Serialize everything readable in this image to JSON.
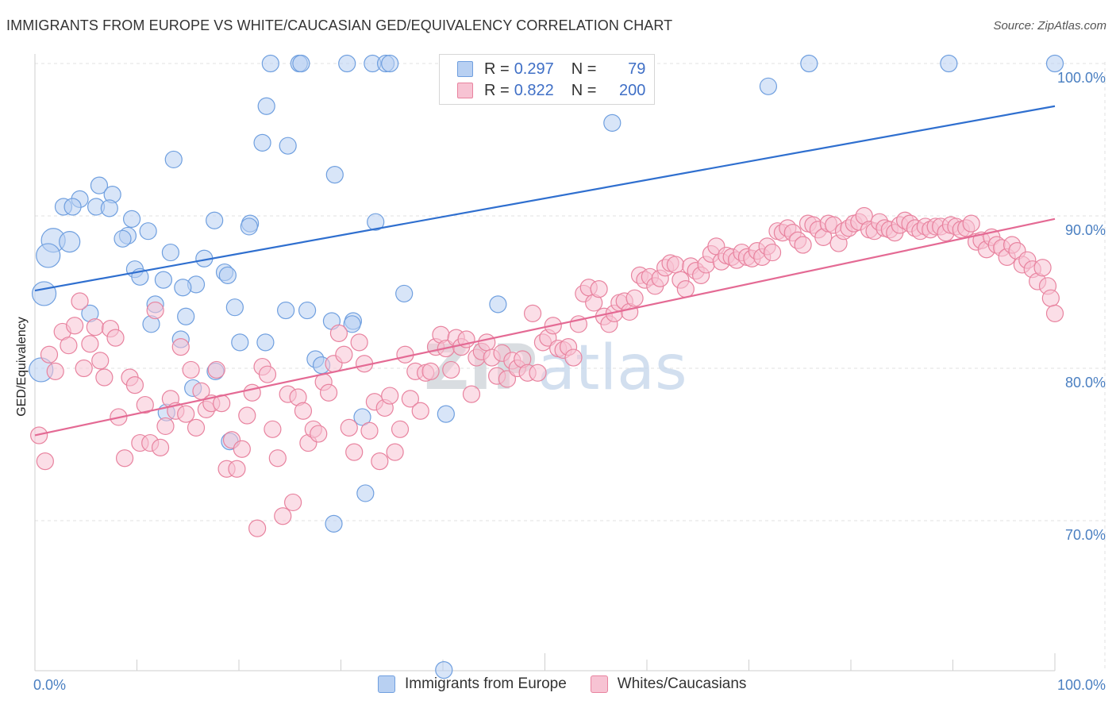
{
  "title": "IMMIGRANTS FROM EUROPE VS WHITE/CAUCASIAN GED/EQUIVALENCY CORRELATION CHART",
  "source": "Source: ZipAtlas.com",
  "legend": {
    "r_label": "R =",
    "n_label": "N =",
    "series1": {
      "r": "0.297",
      "n": "79"
    },
    "series2": {
      "r": "0.822",
      "n": "200"
    }
  },
  "chart_data": {
    "type": "scatter",
    "ylabel": "GED/Equivalency",
    "xlim": [
      0,
      100
    ],
    "ylim": [
      60,
      100
    ],
    "xticks": [
      "0.0%",
      "100.0%"
    ],
    "yticks": [
      {
        "value": 100,
        "label": "100.0%"
      },
      {
        "value": 90,
        "label": "90.0%"
      },
      {
        "value": 80,
        "label": "80.0%"
      },
      {
        "value": 70,
        "label": "70.0%"
      }
    ],
    "watermark": "ZIPatlas",
    "series": [
      {
        "name": "Immigrants from Europe",
        "color": "#6f9fdf",
        "fill": "#b8d0f2",
        "trend": [
          [
            0,
            85.1
          ],
          [
            100,
            97.2
          ]
        ],
        "points": [
          [
            23.1,
            100
          ],
          [
            25.9,
            100
          ],
          [
            26.1,
            100
          ],
          [
            30.6,
            100
          ],
          [
            33.1,
            100
          ],
          [
            34.4,
            100
          ],
          [
            34.8,
            100
          ],
          [
            75.9,
            100
          ],
          [
            89.6,
            100
          ],
          [
            100,
            100
          ],
          [
            71.9,
            98.5
          ],
          [
            56.6,
            96.1
          ],
          [
            22.7,
            97.2
          ],
          [
            22.3,
            94.8
          ],
          [
            24.8,
            94.6
          ],
          [
            13.6,
            93.7
          ],
          [
            29.4,
            92.7
          ],
          [
            6.3,
            92.0
          ],
          [
            7.6,
            91.4
          ],
          [
            4.4,
            91.1
          ],
          [
            2.8,
            90.6
          ],
          [
            3.7,
            90.6
          ],
          [
            6.0,
            90.6
          ],
          [
            7.3,
            90.5
          ],
          [
            9.5,
            89.8
          ],
          [
            17.6,
            89.7
          ],
          [
            21.1,
            89.5
          ],
          [
            21.0,
            89.3
          ],
          [
            33.4,
            89.6
          ],
          [
            11.1,
            89.0
          ],
          [
            9.1,
            88.7
          ],
          [
            8.6,
            88.5
          ],
          [
            1.8,
            88.4
          ],
          [
            3.4,
            88.3
          ],
          [
            13.3,
            87.6
          ],
          [
            16.6,
            87.2
          ],
          [
            1.3,
            87.4
          ],
          [
            9.8,
            86.5
          ],
          [
            18.6,
            86.3
          ],
          [
            18.9,
            86.1
          ],
          [
            10.3,
            86.0
          ],
          [
            12.6,
            85.8
          ],
          [
            15.8,
            85.5
          ],
          [
            14.5,
            85.3
          ],
          [
            0.9,
            84.9
          ],
          [
            36.2,
            84.9
          ],
          [
            45.4,
            84.2
          ],
          [
            11.8,
            84.2
          ],
          [
            19.6,
            84.0
          ],
          [
            24.6,
            83.8
          ],
          [
            26.7,
            83.8
          ],
          [
            5.4,
            83.6
          ],
          [
            14.8,
            83.4
          ],
          [
            29.1,
            83.1
          ],
          [
            31.2,
            83.1
          ],
          [
            31.1,
            82.9
          ],
          [
            11.4,
            82.9
          ],
          [
            14.3,
            81.9
          ],
          [
            20.1,
            81.7
          ],
          [
            22.6,
            81.7
          ],
          [
            27.5,
            80.6
          ],
          [
            28.1,
            80.2
          ],
          [
            0.6,
            79.9
          ],
          [
            17.7,
            79.8
          ],
          [
            15.5,
            78.7
          ],
          [
            12.9,
            77.1
          ],
          [
            32.1,
            76.8
          ],
          [
            40.3,
            77.0
          ],
          [
            19.1,
            75.2
          ],
          [
            32.4,
            71.8
          ],
          [
            29.3,
            69.8
          ],
          [
            40.1,
            60.2
          ]
        ]
      },
      {
        "name": "Whites/Caucasians",
        "color": "#e8839f",
        "fill": "#f7c3d3",
        "trend": [
          [
            0,
            75.6
          ],
          [
            100,
            89.8
          ]
        ],
        "points": [
          [
            0.4,
            75.6
          ],
          [
            1.0,
            73.9
          ],
          [
            1.4,
            80.9
          ],
          [
            2.0,
            79.8
          ],
          [
            2.7,
            82.4
          ],
          [
            3.3,
            81.5
          ],
          [
            3.9,
            82.8
          ],
          [
            4.4,
            84.4
          ],
          [
            4.8,
            80.0
          ],
          [
            5.4,
            81.6
          ],
          [
            5.9,
            82.7
          ],
          [
            6.4,
            80.5
          ],
          [
            6.8,
            79.4
          ],
          [
            7.4,
            82.6
          ],
          [
            7.9,
            82.0
          ],
          [
            8.2,
            76.8
          ],
          [
            8.8,
            74.1
          ],
          [
            9.3,
            79.4
          ],
          [
            9.8,
            78.9
          ],
          [
            10.3,
            75.1
          ],
          [
            10.8,
            77.6
          ],
          [
            11.3,
            75.1
          ],
          [
            11.8,
            83.8
          ],
          [
            12.3,
            74.8
          ],
          [
            12.8,
            76.2
          ],
          [
            13.3,
            78.0
          ],
          [
            13.8,
            77.2
          ],
          [
            14.3,
            81.4
          ],
          [
            14.8,
            77.0
          ],
          [
            15.3,
            79.9
          ],
          [
            15.8,
            76.1
          ],
          [
            16.3,
            78.5
          ],
          [
            16.8,
            77.3
          ],
          [
            17.3,
            77.7
          ],
          [
            17.8,
            79.9
          ],
          [
            18.3,
            77.7
          ],
          [
            18.8,
            73.4
          ],
          [
            19.3,
            75.3
          ],
          [
            19.8,
            73.4
          ],
          [
            20.3,
            74.7
          ],
          [
            20.8,
            76.9
          ],
          [
            21.3,
            78.4
          ],
          [
            21.8,
            69.5
          ],
          [
            22.3,
            80.1
          ],
          [
            22.8,
            79.6
          ],
          [
            23.3,
            76.0
          ],
          [
            23.8,
            74.1
          ],
          [
            24.3,
            70.3
          ],
          [
            24.8,
            78.3
          ],
          [
            25.3,
            71.2
          ],
          [
            25.8,
            78.1
          ],
          [
            26.3,
            77.2
          ],
          [
            26.8,
            75.1
          ],
          [
            27.3,
            76.0
          ],
          [
            27.8,
            75.7
          ],
          [
            28.3,
            79.1
          ],
          [
            28.8,
            78.4
          ],
          [
            29.3,
            80.3
          ],
          [
            29.8,
            82.3
          ],
          [
            30.3,
            80.9
          ],
          [
            30.8,
            76.1
          ],
          [
            31.3,
            74.5
          ],
          [
            31.8,
            81.7
          ],
          [
            32.3,
            80.3
          ],
          [
            32.8,
            75.9
          ],
          [
            33.3,
            77.8
          ],
          [
            33.8,
            73.9
          ],
          [
            34.3,
            77.4
          ],
          [
            34.8,
            78.2
          ],
          [
            35.3,
            74.5
          ],
          [
            35.8,
            76.0
          ],
          [
            36.3,
            80.9
          ],
          [
            36.8,
            78.0
          ],
          [
            37.3,
            79.8
          ],
          [
            37.8,
            77.2
          ],
          [
            38.3,
            79.7
          ],
          [
            38.8,
            79.8
          ],
          [
            39.3,
            81.4
          ],
          [
            39.8,
            82.2
          ],
          [
            40.3,
            81.3
          ],
          [
            40.8,
            79.9
          ],
          [
            41.3,
            82.0
          ],
          [
            41.8,
            81.4
          ],
          [
            42.3,
            81.9
          ],
          [
            42.8,
            78.3
          ],
          [
            43.3,
            80.7
          ],
          [
            43.8,
            81.1
          ],
          [
            44.3,
            81.7
          ],
          [
            44.8,
            80.7
          ],
          [
            45.3,
            79.5
          ],
          [
            45.8,
            81.0
          ],
          [
            46.3,
            79.3
          ],
          [
            46.8,
            80.5
          ],
          [
            47.3,
            80.0
          ],
          [
            47.8,
            80.6
          ],
          [
            48.3,
            79.7
          ],
          [
            48.8,
            83.6
          ],
          [
            49.3,
            79.7
          ],
          [
            49.8,
            81.7
          ],
          [
            50.3,
            82.0
          ],
          [
            50.8,
            82.8
          ],
          [
            51.3,
            81.3
          ],
          [
            51.8,
            81.2
          ],
          [
            52.3,
            81.4
          ],
          [
            52.8,
            80.7
          ],
          [
            53.3,
            82.9
          ],
          [
            53.8,
            84.9
          ],
          [
            54.3,
            85.3
          ],
          [
            54.8,
            84.3
          ],
          [
            55.3,
            85.2
          ],
          [
            55.8,
            83.4
          ],
          [
            56.3,
            82.9
          ],
          [
            56.8,
            83.6
          ],
          [
            57.3,
            84.3
          ],
          [
            57.8,
            84.4
          ],
          [
            58.3,
            83.7
          ],
          [
            58.8,
            84.6
          ],
          [
            59.3,
            86.1
          ],
          [
            59.8,
            85.8
          ],
          [
            60.3,
            86.0
          ],
          [
            60.8,
            85.4
          ],
          [
            61.3,
            85.9
          ],
          [
            61.8,
            86.6
          ],
          [
            62.3,
            86.9
          ],
          [
            62.8,
            86.8
          ],
          [
            63.3,
            85.8
          ],
          [
            63.8,
            85.2
          ],
          [
            64.3,
            86.7
          ],
          [
            64.8,
            86.4
          ],
          [
            65.3,
            86.1
          ],
          [
            65.8,
            86.8
          ],
          [
            66.3,
            87.5
          ],
          [
            66.8,
            88.0
          ],
          [
            67.3,
            87.0
          ],
          [
            67.8,
            87.4
          ],
          [
            68.3,
            87.3
          ],
          [
            68.8,
            87.1
          ],
          [
            69.3,
            87.6
          ],
          [
            69.8,
            87.3
          ],
          [
            70.3,
            87.2
          ],
          [
            70.8,
            87.7
          ],
          [
            71.3,
            87.3
          ],
          [
            71.8,
            88.0
          ],
          [
            72.3,
            87.6
          ],
          [
            72.8,
            89.0
          ],
          [
            73.3,
            88.9
          ],
          [
            73.8,
            89.2
          ],
          [
            74.3,
            88.9
          ],
          [
            74.8,
            88.4
          ],
          [
            75.3,
            88.1
          ],
          [
            75.8,
            89.5
          ],
          [
            76.3,
            89.4
          ],
          [
            76.8,
            89.1
          ],
          [
            77.3,
            88.6
          ],
          [
            77.8,
            89.5
          ],
          [
            78.3,
            89.4
          ],
          [
            78.8,
            88.2
          ],
          [
            79.3,
            89.0
          ],
          [
            79.8,
            89.2
          ],
          [
            80.3,
            89.5
          ],
          [
            80.8,
            89.6
          ],
          [
            81.3,
            90.0
          ],
          [
            81.8,
            89.1
          ],
          [
            82.3,
            89.0
          ],
          [
            82.8,
            89.6
          ],
          [
            83.3,
            89.2
          ],
          [
            83.8,
            89.1
          ],
          [
            84.3,
            88.9
          ],
          [
            84.8,
            89.4
          ],
          [
            85.3,
            89.7
          ],
          [
            85.8,
            89.5
          ],
          [
            86.3,
            89.2
          ],
          [
            86.8,
            89.0
          ],
          [
            87.3,
            89.3
          ],
          [
            87.8,
            89.1
          ],
          [
            88.3,
            89.3
          ],
          [
            88.8,
            89.3
          ],
          [
            89.3,
            88.9
          ],
          [
            89.8,
            89.4
          ],
          [
            90.3,
            89.3
          ],
          [
            90.8,
            89.1
          ],
          [
            91.3,
            89.2
          ],
          [
            91.8,
            89.5
          ],
          [
            92.3,
            88.3
          ],
          [
            92.8,
            88.4
          ],
          [
            93.3,
            87.8
          ],
          [
            93.8,
            88.6
          ],
          [
            94.3,
            88.1
          ],
          [
            94.8,
            87.9
          ],
          [
            95.3,
            87.3
          ],
          [
            95.8,
            88.1
          ],
          [
            96.3,
            87.7
          ],
          [
            96.8,
            86.8
          ],
          [
            97.3,
            87.1
          ],
          [
            97.8,
            86.5
          ],
          [
            98.3,
            85.7
          ],
          [
            98.8,
            86.6
          ],
          [
            99.3,
            85.4
          ],
          [
            99.6,
            84.6
          ],
          [
            100,
            83.6
          ]
        ]
      }
    ]
  },
  "bottom_legend": {
    "item1": "Immigrants from Europe",
    "item2": "Whites/Caucasians"
  }
}
